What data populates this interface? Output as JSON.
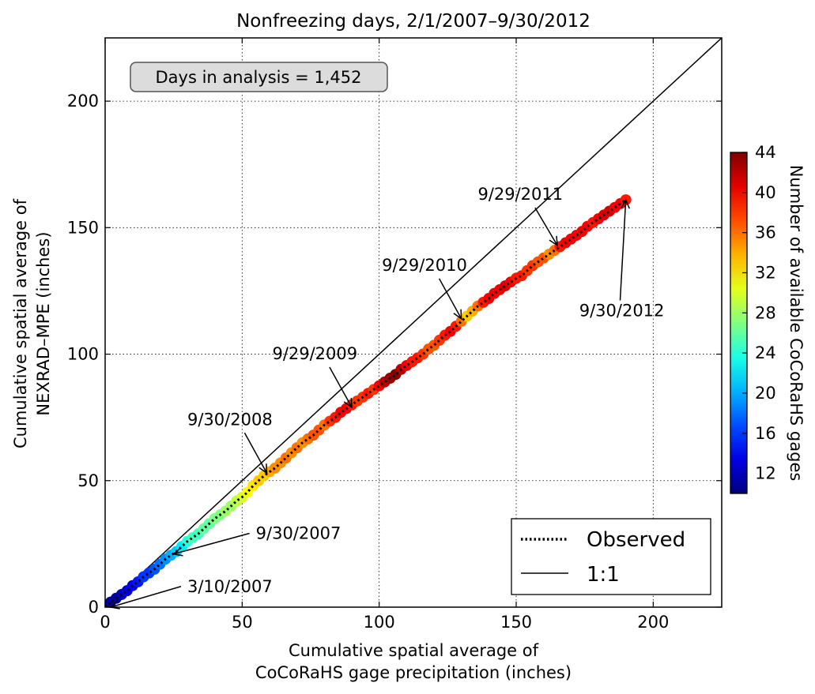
{
  "chart_data": {
    "type": "scatter",
    "title": "Nonfreezing days, 2/1/2007–9/30/2012",
    "xlabel_lines": [
      "Cumulative spatial average of",
      "CoCoRaHS gage precipitation (inches)"
    ],
    "ylabel_lines": [
      "Cumulative spatial average of",
      "NEXRAD–MPE (inches)"
    ],
    "xlim": [
      0,
      225
    ],
    "ylim": [
      0,
      225
    ],
    "xticks": [
      0,
      50,
      100,
      150,
      200
    ],
    "yticks": [
      0,
      50,
      100,
      150,
      200
    ],
    "grid": true,
    "info_box": "Days in analysis = 1,452",
    "legend": {
      "placement": "lower-right",
      "entries": [
        {
          "label": "Observed",
          "style": "dotted"
        },
        {
          "label": "1:1",
          "style": "solid"
        }
      ]
    },
    "colorbar": {
      "label": "Number of available CoCoRaHS gages",
      "min": 10,
      "max": 44,
      "ticks": [
        12,
        16,
        20,
        24,
        28,
        32,
        36,
        40,
        44
      ],
      "colormap": "jet"
    },
    "series": [
      {
        "name": "Observed",
        "points": [
          {
            "x": 0,
            "y": 0,
            "n": 12
          },
          {
            "x": 2,
            "y": 2,
            "n": 11
          },
          {
            "x": 4,
            "y": 3.5,
            "n": 11
          },
          {
            "x": 6,
            "y": 5,
            "n": 12
          },
          {
            "x": 8,
            "y": 6.5,
            "n": 13
          },
          {
            "x": 10,
            "y": 8.5,
            "n": 14
          },
          {
            "x": 12,
            "y": 10,
            "n": 15
          },
          {
            "x": 14,
            "y": 12,
            "n": 16
          },
          {
            "x": 16,
            "y": 13.5,
            "n": 16
          },
          {
            "x": 18,
            "y": 15,
            "n": 17
          },
          {
            "x": 20,
            "y": 17,
            "n": 18
          },
          {
            "x": 22,
            "y": 19,
            "n": 19
          },
          {
            "x": 24,
            "y": 20.5,
            "n": 20
          },
          {
            "x": 26,
            "y": 22,
            "n": 21
          },
          {
            "x": 28,
            "y": 24,
            "n": 22
          },
          {
            "x": 30,
            "y": 26,
            "n": 24
          },
          {
            "x": 32,
            "y": 27.5,
            "n": 25
          },
          {
            "x": 34,
            "y": 29,
            "n": 25
          },
          {
            "x": 36,
            "y": 31,
            "n": 26
          },
          {
            "x": 38,
            "y": 33,
            "n": 26
          },
          {
            "x": 40,
            "y": 35,
            "n": 27
          },
          {
            "x": 42,
            "y": 36.5,
            "n": 27
          },
          {
            "x": 44,
            "y": 38,
            "n": 28
          },
          {
            "x": 46,
            "y": 40,
            "n": 28
          },
          {
            "x": 48,
            "y": 42,
            "n": 29
          },
          {
            "x": 50,
            "y": 43.5,
            "n": 30
          },
          {
            "x": 52,
            "y": 45.5,
            "n": 31
          },
          {
            "x": 54,
            "y": 48,
            "n": 32
          },
          {
            "x": 56,
            "y": 50,
            "n": 33
          },
          {
            "x": 58,
            "y": 52,
            "n": 33
          },
          {
            "x": 60,
            "y": 53.5,
            "n": 34
          },
          {
            "x": 62,
            "y": 55,
            "n": 35
          },
          {
            "x": 64,
            "y": 57,
            "n": 35
          },
          {
            "x": 66,
            "y": 59,
            "n": 36
          },
          {
            "x": 68,
            "y": 61,
            "n": 35
          },
          {
            "x": 70,
            "y": 63,
            "n": 36
          },
          {
            "x": 72,
            "y": 65,
            "n": 35
          },
          {
            "x": 74,
            "y": 66.5,
            "n": 36
          },
          {
            "x": 76,
            "y": 68,
            "n": 37
          },
          {
            "x": 78,
            "y": 70,
            "n": 37
          },
          {
            "x": 80,
            "y": 72,
            "n": 36
          },
          {
            "x": 82,
            "y": 73.5,
            "n": 38
          },
          {
            "x": 84,
            "y": 75,
            "n": 39
          },
          {
            "x": 86,
            "y": 77,
            "n": 40
          },
          {
            "x": 88,
            "y": 78.5,
            "n": 40
          },
          {
            "x": 90,
            "y": 80,
            "n": 39
          },
          {
            "x": 92,
            "y": 81.5,
            "n": 38
          },
          {
            "x": 94,
            "y": 83,
            "n": 38
          },
          {
            "x": 96,
            "y": 84.5,
            "n": 39
          },
          {
            "x": 98,
            "y": 86,
            "n": 38
          },
          {
            "x": 100,
            "y": 87.5,
            "n": 40
          },
          {
            "x": 102,
            "y": 89,
            "n": 42
          },
          {
            "x": 104,
            "y": 90.5,
            "n": 43
          },
          {
            "x": 106,
            "y": 92,
            "n": 44
          },
          {
            "x": 108,
            "y": 94,
            "n": 42
          },
          {
            "x": 110,
            "y": 95.5,
            "n": 40
          },
          {
            "x": 112,
            "y": 97,
            "n": 39
          },
          {
            "x": 114,
            "y": 98.5,
            "n": 39
          },
          {
            "x": 116,
            "y": 100,
            "n": 38
          },
          {
            "x": 118,
            "y": 102,
            "n": 37
          },
          {
            "x": 120,
            "y": 103.5,
            "n": 37
          },
          {
            "x": 122,
            "y": 105.5,
            "n": 38
          },
          {
            "x": 124,
            "y": 107.5,
            "n": 39
          },
          {
            "x": 126,
            "y": 109,
            "n": 40
          },
          {
            "x": 128,
            "y": 111,
            "n": 39
          },
          {
            "x": 130,
            "y": 113,
            "n": 36
          },
          {
            "x": 132,
            "y": 115,
            "n": 33
          },
          {
            "x": 134,
            "y": 117,
            "n": 34
          },
          {
            "x": 136,
            "y": 119,
            "n": 36
          },
          {
            "x": 138,
            "y": 120.5,
            "n": 39
          },
          {
            "x": 140,
            "y": 122,
            "n": 40
          },
          {
            "x": 142,
            "y": 124,
            "n": 40
          },
          {
            "x": 144,
            "y": 125.5,
            "n": 40
          },
          {
            "x": 146,
            "y": 127,
            "n": 41
          },
          {
            "x": 148,
            "y": 128.5,
            "n": 40
          },
          {
            "x": 150,
            "y": 130,
            "n": 39
          },
          {
            "x": 152,
            "y": 131,
            "n": 39
          },
          {
            "x": 154,
            "y": 133,
            "n": 38
          },
          {
            "x": 156,
            "y": 135,
            "n": 38
          },
          {
            "x": 158,
            "y": 136.5,
            "n": 37
          },
          {
            "x": 160,
            "y": 138,
            "n": 37
          },
          {
            "x": 162,
            "y": 139.5,
            "n": 35
          },
          {
            "x": 164,
            "y": 141,
            "n": 36
          },
          {
            "x": 166,
            "y": 142.5,
            "n": 39
          },
          {
            "x": 168,
            "y": 144,
            "n": 40
          },
          {
            "x": 170,
            "y": 145.5,
            "n": 40
          },
          {
            "x": 172,
            "y": 147,
            "n": 40
          },
          {
            "x": 174,
            "y": 148.5,
            "n": 40
          },
          {
            "x": 176,
            "y": 150.5,
            "n": 40
          },
          {
            "x": 178,
            "y": 152,
            "n": 39
          },
          {
            "x": 180,
            "y": 153.5,
            "n": 40
          },
          {
            "x": 182,
            "y": 155,
            "n": 41
          },
          {
            "x": 184,
            "y": 156.5,
            "n": 41
          },
          {
            "x": 186,
            "y": 158,
            "n": 40
          },
          {
            "x": 188,
            "y": 159.5,
            "n": 40
          },
          {
            "x": 190,
            "y": 161,
            "n": 39
          }
        ]
      },
      {
        "name": "1:1",
        "points": [
          {
            "x": 0,
            "y": 0
          },
          {
            "x": 225,
            "y": 225
          }
        ]
      }
    ],
    "annotations": [
      {
        "text": "3/10/2007",
        "point": {
          "x": 2,
          "y": 0
        },
        "label_at": {
          "x": 30,
          "y": 6
        }
      },
      {
        "text": "9/30/2007",
        "point": {
          "x": 25,
          "y": 21
        },
        "label_at": {
          "x": 55,
          "y": 27
        }
      },
      {
        "text": "9/30/2008",
        "point": {
          "x": 59,
          "y": 53
        },
        "label_at": {
          "x": 30,
          "y": 72
        }
      },
      {
        "text": "9/29/2009",
        "point": {
          "x": 90,
          "y": 79
        },
        "label_at": {
          "x": 61,
          "y": 98
        }
      },
      {
        "text": "9/29/2010",
        "point": {
          "x": 130,
          "y": 114
        },
        "label_at": {
          "x": 101,
          "y": 133
        }
      },
      {
        "text": "9/29/2011",
        "point": {
          "x": 165,
          "y": 143
        },
        "label_at": {
          "x": 136,
          "y": 161
        }
      },
      {
        "text": "9/30/2012",
        "point": {
          "x": 190,
          "y": 161
        },
        "label_at": {
          "x": 173,
          "y": 115
        }
      }
    ]
  }
}
